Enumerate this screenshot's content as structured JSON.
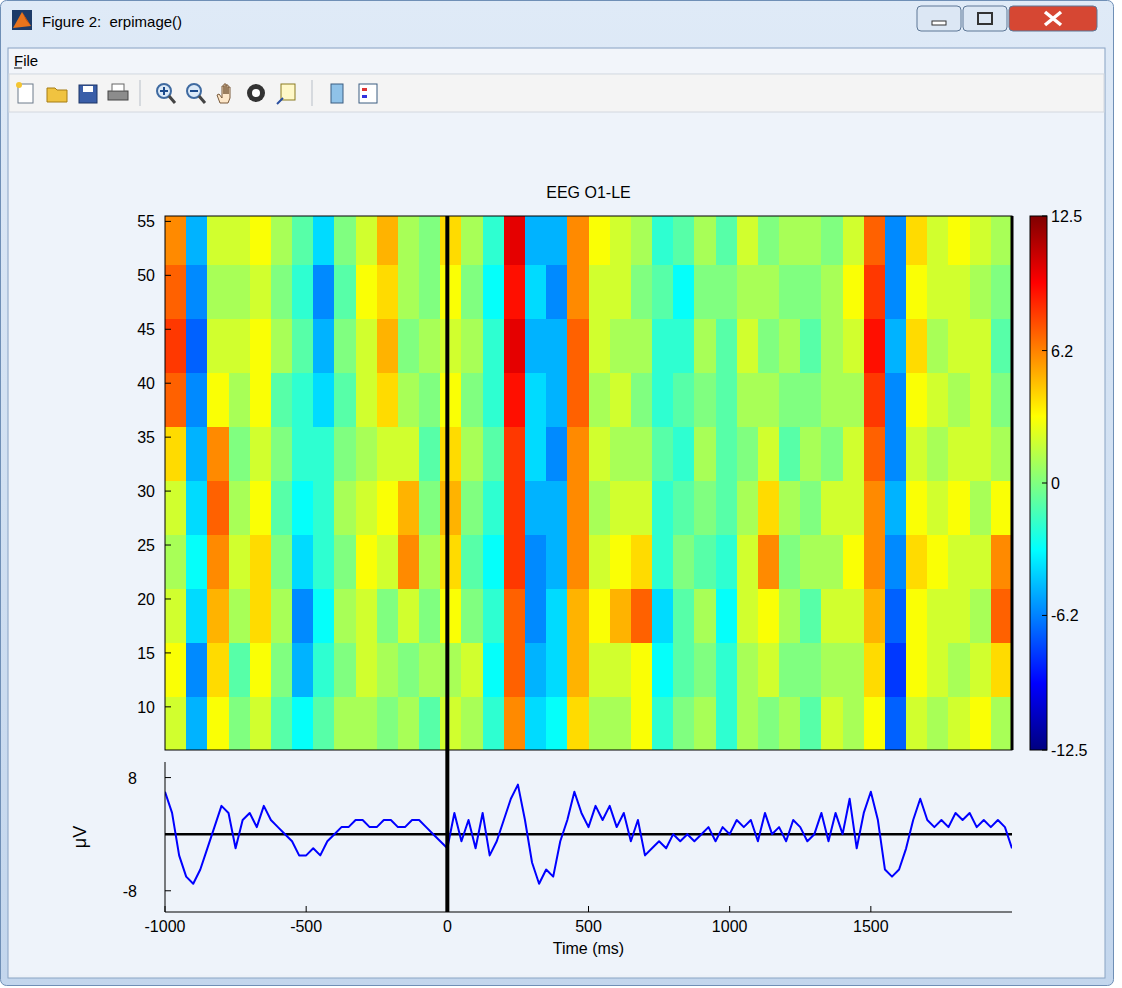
{
  "window": {
    "title": "Figure 2:  erpimage()",
    "menu": [
      "File"
    ]
  },
  "chart_data": [
    {
      "type": "heatmap",
      "title": "EEG O1-LE",
      "xlim": [
        -1000,
        2000
      ],
      "ylim": [
        6,
        55.5
      ],
      "yticks": [
        10,
        15,
        20,
        25,
        30,
        35,
        40,
        45,
        50,
        55
      ],
      "tick_labels": "y",
      "vlines": [
        0
      ],
      "x_edges": [
        -1000,
        -925,
        -850,
        -775,
        -700,
        -625,
        -550,
        -475,
        -400,
        -325,
        -250,
        -175,
        -100,
        -25,
        50,
        125,
        200,
        275,
        350,
        425,
        500,
        575,
        650,
        725,
        800,
        875,
        950,
        1025,
        1100,
        1175,
        1250,
        1325,
        1400,
        1475,
        1550,
        1625,
        1700,
        1775,
        1850,
        1925,
        2000
      ],
      "y_edges": [
        6,
        11,
        16,
        21,
        26,
        31,
        36,
        41,
        46,
        51,
        55.5
      ],
      "cells": [
        [
          2,
          -5,
          3,
          0,
          2,
          -1,
          -3,
          -1,
          1,
          1,
          0,
          1,
          -1,
          2,
          1,
          -2,
          6,
          -4,
          -3,
          4,
          1,
          1,
          3,
          -2,
          0,
          1,
          -2,
          1,
          0,
          1,
          -1,
          2,
          1,
          3,
          -7,
          2,
          1,
          2,
          3,
          1
        ],
        [
          3,
          -6,
          4,
          -1,
          3,
          0,
          -5,
          -2,
          0,
          2,
          1,
          0,
          1,
          1,
          2,
          -3,
          7,
          -5,
          -4,
          5,
          2,
          2,
          3,
          -3,
          -1,
          0,
          -2,
          1,
          2,
          0,
          0,
          1,
          1,
          4,
          -8,
          3,
          2,
          1,
          2,
          4
        ],
        [
          2,
          -4,
          5,
          1,
          4,
          1,
          -6,
          -3,
          1,
          2,
          0,
          2,
          0,
          3,
          0,
          -2,
          7,
          -6,
          -4,
          5,
          3,
          5,
          7,
          -4,
          -1,
          1,
          -3,
          2,
          3,
          1,
          -1,
          2,
          2,
          5,
          -7,
          3,
          2,
          2,
          1,
          7
        ],
        [
          1,
          -3,
          6,
          2,
          4,
          0,
          -4,
          -2,
          0,
          3,
          2,
          6,
          1,
          4,
          -1,
          -3,
          8,
          -6,
          -5,
          6,
          2,
          3,
          4,
          -2,
          0,
          -1,
          -2,
          2,
          6,
          0,
          1,
          1,
          3,
          6,
          -6,
          4,
          3,
          2,
          2,
          6
        ],
        [
          2,
          -4,
          7,
          1,
          3,
          -1,
          -3,
          -2,
          1,
          2,
          3,
          5,
          0,
          5,
          0,
          -2,
          8,
          -5,
          -5,
          6,
          1,
          2,
          2,
          -2,
          -1,
          0,
          -1,
          1,
          4,
          1,
          0,
          2,
          2,
          6,
          -5,
          3,
          2,
          3,
          1,
          3
        ],
        [
          4,
          -5,
          6,
          0,
          2,
          0,
          -2,
          -2,
          0,
          1,
          2,
          2,
          -1,
          4,
          1,
          -1,
          8,
          -4,
          -6,
          6,
          2,
          1,
          1,
          -1,
          -2,
          1,
          -1,
          0,
          2,
          -1,
          1,
          0,
          2,
          7,
          -6,
          2,
          1,
          2,
          2,
          1
        ],
        [
          7,
          -6,
          3,
          1,
          3,
          -1,
          -2,
          -4,
          -1,
          2,
          4,
          1,
          0,
          3,
          0,
          -2,
          9,
          -4,
          -5,
          7,
          1,
          2,
          0,
          -2,
          -1,
          0,
          -1,
          1,
          1,
          0,
          0,
          1,
          1,
          8,
          -6,
          3,
          2,
          1,
          2,
          0
        ],
        [
          8,
          -7,
          2,
          2,
          3,
          1,
          -1,
          -5,
          0,
          2,
          5,
          0,
          1,
          2,
          1,
          -2,
          10,
          -5,
          -5,
          7,
          2,
          1,
          1,
          -2,
          -2,
          1,
          -1,
          2,
          0,
          1,
          -1,
          1,
          2,
          9,
          -5,
          4,
          1,
          2,
          2,
          -1
        ],
        [
          7,
          -6,
          1,
          1,
          2,
          0,
          -2,
          -6,
          -1,
          3,
          4,
          1,
          0,
          3,
          0,
          -3,
          9,
          -4,
          -6,
          6,
          2,
          2,
          0,
          -1,
          -3,
          0,
          0,
          1,
          1,
          0,
          0,
          1,
          3,
          8,
          -6,
          3,
          2,
          2,
          1,
          0
        ],
        [
          6,
          -5,
          2,
          2,
          3,
          1,
          -1,
          -4,
          0,
          2,
          5,
          1,
          0,
          4,
          1,
          -2,
          10,
          -5,
          -5,
          6,
          3,
          2,
          1,
          -2,
          -1,
          1,
          -1,
          2,
          0,
          1,
          1,
          0,
          2,
          7,
          -6,
          4,
          2,
          3,
          2,
          1
        ]
      ],
      "colorbar": {
        "lim": [
          -12.5,
          12.5
        ],
        "ticks": [
          -12.5,
          -6.2,
          0,
          6.2,
          12.5
        ]
      }
    },
    {
      "type": "line",
      "xlabel": "Time (ms)",
      "ylabel": "μV",
      "xlim": [
        -1000,
        2000
      ],
      "ylim": [
        -11,
        10.2
      ],
      "xticks": [
        -1000,
        -500,
        0,
        500,
        1000,
        1500
      ],
      "yticks": [
        -8,
        8
      ],
      "vlines": [
        0
      ],
      "hlines": [
        0
      ],
      "color": "#0000ff",
      "x": [
        -1000,
        -975,
        -950,
        -925,
        -900,
        -875,
        -850,
        -825,
        -800,
        -775,
        -750,
        -725,
        -700,
        -675,
        -650,
        -625,
        -600,
        -575,
        -550,
        -525,
        -500,
        -475,
        -450,
        -425,
        -400,
        -375,
        -350,
        -325,
        -300,
        -275,
        -250,
        -225,
        -200,
        -175,
        -150,
        -125,
        -100,
        -75,
        -50,
        -25,
        0,
        25,
        50,
        75,
        100,
        125,
        150,
        175,
        200,
        225,
        250,
        275,
        300,
        325,
        350,
        375,
        400,
        425,
        450,
        475,
        500,
        525,
        550,
        575,
        600,
        625,
        650,
        675,
        700,
        725,
        750,
        775,
        800,
        825,
        850,
        875,
        900,
        925,
        950,
        975,
        1000,
        1025,
        1050,
        1075,
        1100,
        1125,
        1150,
        1175,
        1200,
        1225,
        1250,
        1275,
        1300,
        1325,
        1350,
        1375,
        1400,
        1425,
        1450,
        1475,
        1500,
        1525,
        1550,
        1575,
        1600,
        1625,
        1650,
        1675,
        1700,
        1725,
        1750,
        1775,
        1800,
        1825,
        1850,
        1875,
        1900,
        1925,
        1950,
        1975,
        2000
      ],
      "values": [
        6,
        3,
        -3,
        -6,
        -7,
        -5,
        -2,
        1,
        4,
        3,
        -2,
        2,
        3,
        1,
        4,
        2,
        1,
        0,
        -1,
        -3,
        -3,
        -2,
        -3,
        -1,
        0,
        1,
        1,
        2,
        2,
        1,
        1,
        2,
        2,
        1,
        1,
        2,
        2,
        1,
        0,
        -1,
        -2,
        3,
        -1,
        2,
        -2,
        3,
        -3,
        -1,
        2,
        5,
        7,
        2,
        -4,
        -7,
        -5,
        -6,
        -1,
        2,
        6,
        3,
        1,
        4,
        2,
        4,
        1,
        3,
        -1,
        2,
        -3,
        -2,
        -1,
        -2,
        0,
        -1,
        0,
        -1,
        0,
        1,
        -1,
        1,
        0,
        2,
        1,
        2,
        -1,
        3,
        0,
        1,
        -1,
        2,
        1,
        -1,
        0,
        3,
        -1,
        3,
        0,
        5,
        -2,
        3,
        6,
        2,
        -5,
        -6,
        -5,
        -2,
        2,
        5,
        2,
        1,
        2,
        1,
        3,
        2,
        3,
        1,
        2,
        1,
        2,
        1,
        -2
      ]
    }
  ]
}
